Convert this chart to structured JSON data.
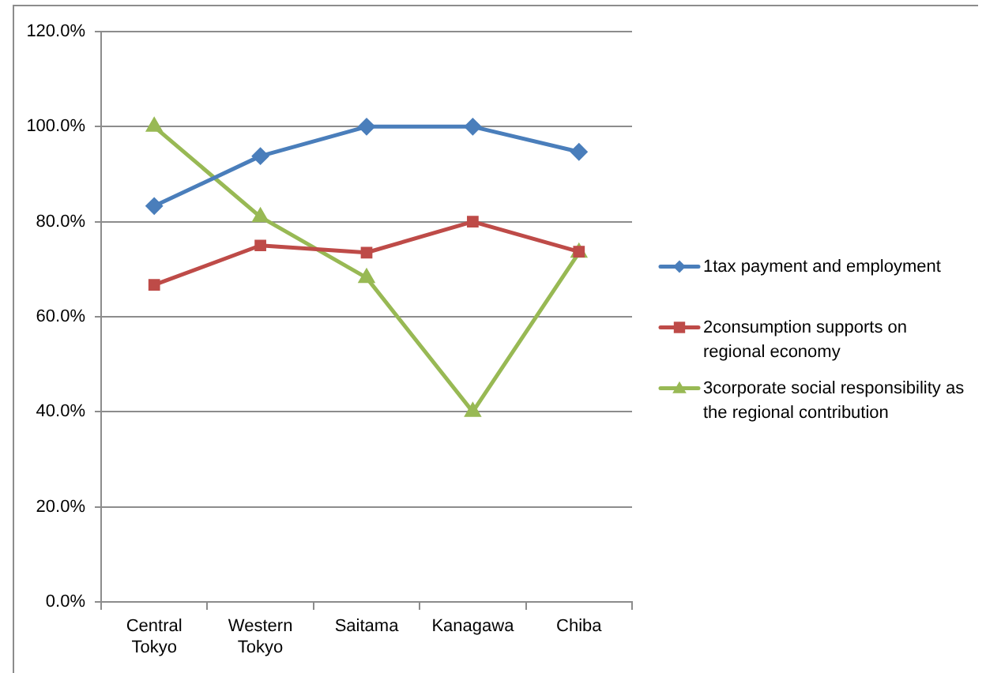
{
  "chart_data": {
    "type": "line",
    "categories": [
      "Central Tokyo",
      "Western Tokyo",
      "Saitama",
      "Kanagawa",
      "Chiba"
    ],
    "series": [
      {
        "name": "1tax payment and employment",
        "color": "#4a7ebb",
        "marker": "diamond",
        "values": [
          83.3,
          93.8,
          100,
          100,
          94.7
        ]
      },
      {
        "name": "2consumption supports on regional economy",
        "color": "#be4b48",
        "marker": "square",
        "values": [
          66.7,
          75,
          73.5,
          80,
          73.7
        ]
      },
      {
        "name": "3corporate social responsibility as the regional contribution",
        "color": "#98b954",
        "marker": "triangle",
        "values": [
          100,
          81,
          68.2,
          40,
          73.5
        ]
      }
    ],
    "ylim": [
      0,
      120
    ],
    "yticks": [
      {
        "value": 0,
        "label": "0.0%"
      },
      {
        "value": 20,
        "label": "20.0%"
      },
      {
        "value": 40,
        "label": "40.0%"
      },
      {
        "value": 60,
        "label": "60.0%"
      },
      {
        "value": 80,
        "label": "80.0%"
      },
      {
        "value": 100,
        "label": "100.0%"
      },
      {
        "value": 120,
        "label": "120.0%"
      }
    ],
    "grid": "y",
    "legend": "right",
    "line_style": "solid"
  }
}
